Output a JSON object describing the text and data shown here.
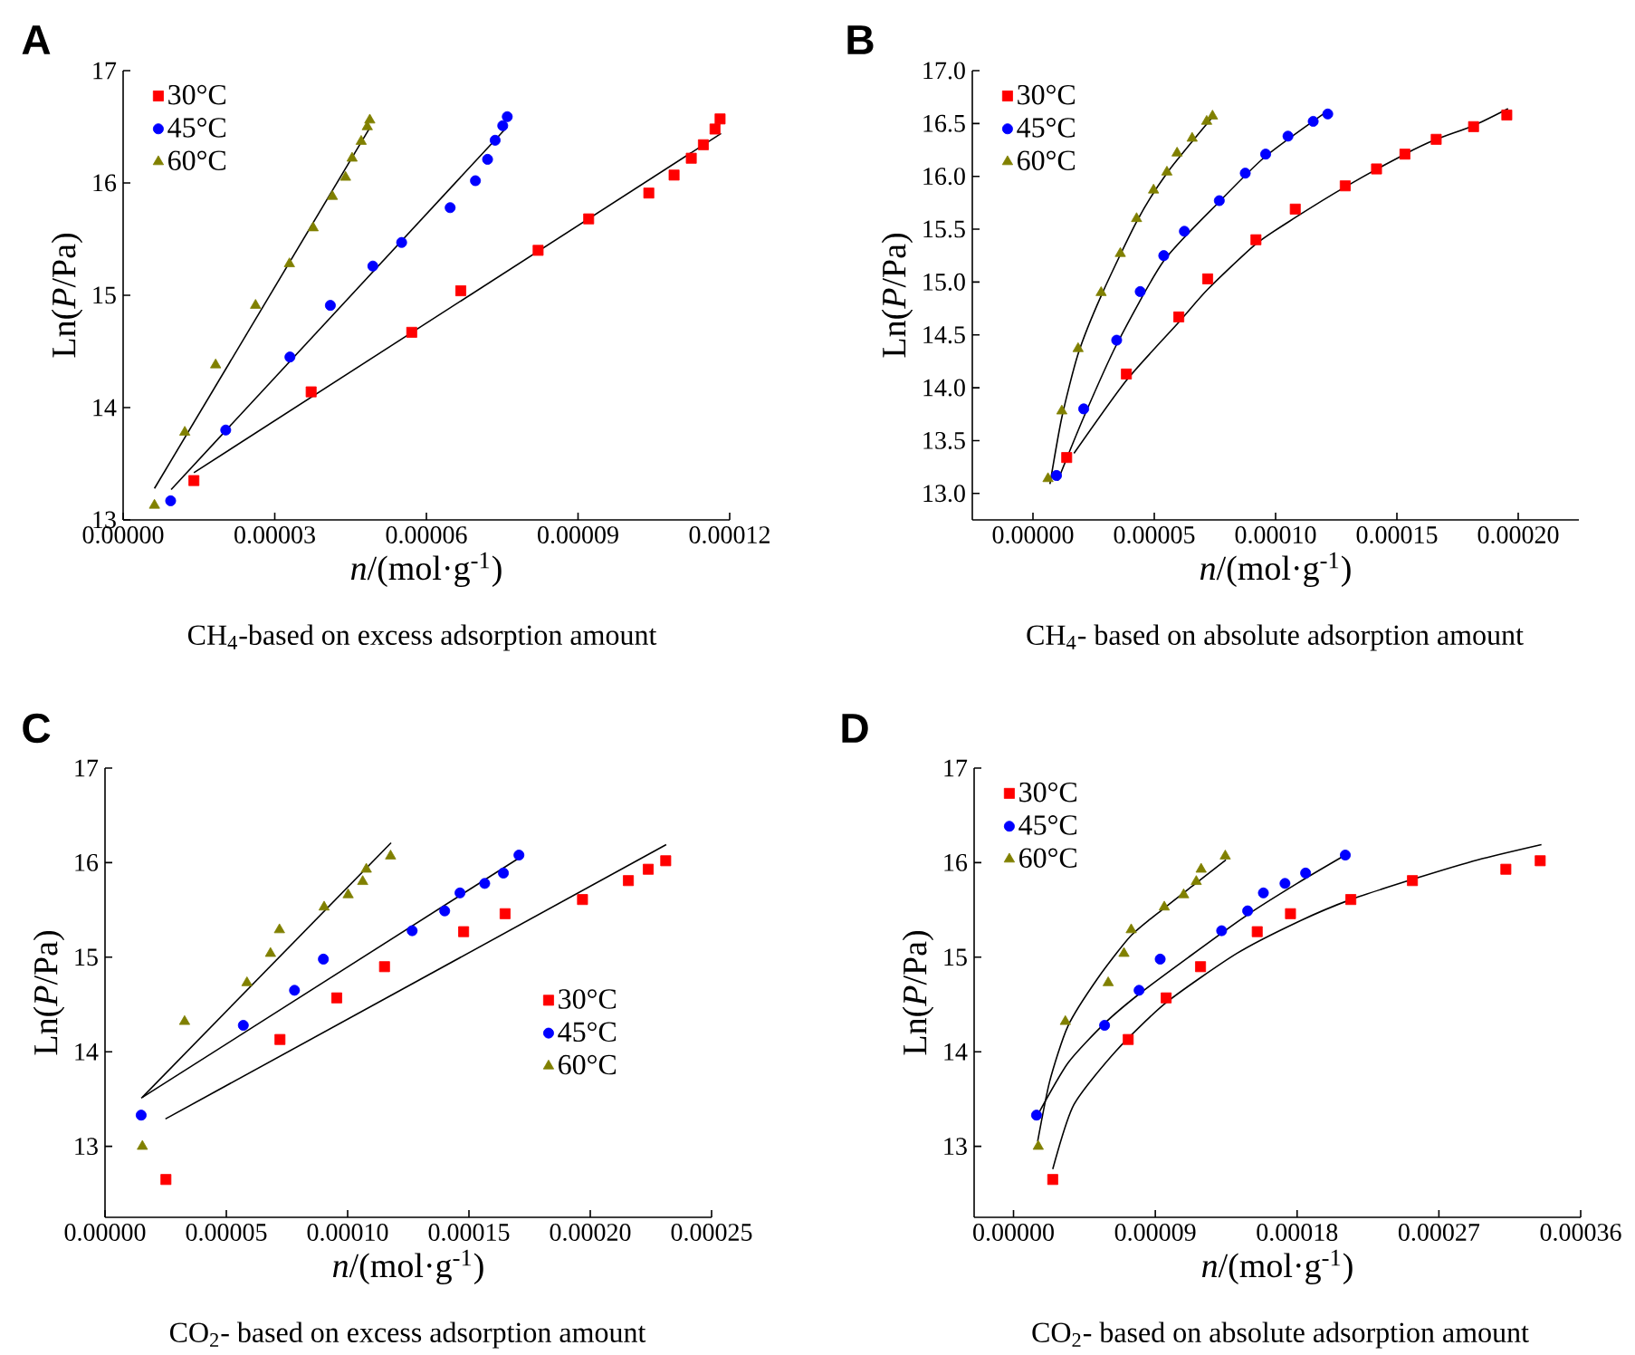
{
  "chart_data": [
    {
      "type": "scatter",
      "title": "A",
      "annotations": [
        "CH$_{4}$-based on excess adsorption amount"
      ],
      "xlabel": "*n*/(mol·g$^{-1}$)",
      "ylabel": "Ln(*P*/Pa)",
      "xlim": [
        0,
        0.00012
      ],
      "ylim": [
        13,
        17
      ],
      "xticks": [
        {
          "value": 0,
          "label": "0.00000"
        },
        {
          "value": 3e-05,
          "label": "0.00003"
        },
        {
          "value": 6e-05,
          "label": "0.00006"
        },
        {
          "value": 9e-05,
          "label": "0.00009"
        },
        {
          "value": 0.00012,
          "label": "0.00012"
        }
      ],
      "yticks": [
        13,
        14,
        15,
        16,
        17
      ],
      "legend": "top left",
      "series": [
        {
          "name": "30°C",
          "color": "#ff0000",
          "marker": "square",
          "x": [
            1.4e-05,
            3.72e-05,
            5.71e-05,
            6.68e-05,
            8.21e-05,
            9.21e-05,
            0.000104,
            0.000109,
            0.0001124,
            0.0001148,
            0.0001171,
            0.0001181
          ],
          "values": [
            13.35,
            14.14,
            14.67,
            15.04,
            15.4,
            15.68,
            15.91,
            16.07,
            16.22,
            16.34,
            16.48,
            16.57
          ]
        },
        {
          "name": "45°C",
          "color": "#0000ff",
          "marker": "circle",
          "x": [
            9.4e-06,
            2.03e-05,
            3.3e-05,
            4.1e-05,
            4.94e-05,
            5.51e-05,
            6.47e-05,
            6.97e-05,
            7.21e-05,
            7.36e-05,
            7.51e-05,
            7.6e-05
          ],
          "values": [
            13.17,
            13.8,
            14.45,
            14.91,
            15.26,
            15.47,
            15.78,
            16.02,
            16.21,
            16.38,
            16.51,
            16.59
          ]
        },
        {
          "name": "60°C",
          "color": "#808000",
          "marker": "triangle",
          "x": [
            6.2e-06,
            1.22e-05,
            1.83e-05,
            2.62e-05,
            3.29e-05,
            3.76e-05,
            4.14e-05,
            4.4e-05,
            4.53e-05,
            4.71e-05,
            4.83e-05,
            4.88e-05
          ],
          "values": [
            13.13,
            13.78,
            14.38,
            14.91,
            15.28,
            15.6,
            15.88,
            16.05,
            16.22,
            16.37,
            16.5,
            16.56
          ]
        },
        {
          "type": "line",
          "color": "#000000",
          "x": [
            1.4e-05,
            0.0001183
          ],
          "values": [
            13.42,
            16.44
          ]
        },
        {
          "type": "line",
          "color": "#000000",
          "x": [
            9.5e-06,
            7.6e-05
          ],
          "values": [
            13.27,
            16.5
          ]
        },
        {
          "type": "line",
          "color": "#000000",
          "x": [
            6.2e-06,
            4.88e-05
          ],
          "values": [
            13.28,
            16.49
          ]
        }
      ]
    },
    {
      "type": "scatter",
      "title": "B",
      "annotations": [
        "CH$_{4}$- based on absolute adsorption amount"
      ],
      "xlabel": "*n*/(mol·g$^{-1}$)",
      "ylabel": "Ln(*P*/Pa)",
      "xlim": [
        -2.5e-05,
        0.000225
      ],
      "ylim": [
        12.75,
        17
      ],
      "xticks": [
        {
          "value": 0,
          "label": "0.00000"
        },
        {
          "value": 5e-05,
          "label": "0.00005"
        },
        {
          "value": 0.0001,
          "label": "0.00010"
        },
        {
          "value": 0.00015,
          "label": "0.00015"
        },
        {
          "value": 0.0002,
          "label": "0.00020"
        }
      ],
      "yticks": [
        {
          "value": 13,
          "label": "13.0"
        },
        {
          "value": 13.5,
          "label": "13.5"
        },
        {
          "value": 14,
          "label": "14.0"
        },
        {
          "value": 14.5,
          "label": "14.5"
        },
        {
          "value": 15,
          "label": "15.0"
        },
        {
          "value": 15.5,
          "label": "15.5"
        },
        {
          "value": 16,
          "label": "16.0"
        },
        {
          "value": 16.5,
          "label": "16.5"
        },
        {
          "value": 17,
          "label": "17.0"
        }
      ],
      "legend": "top left",
      "series": [
        {
          "name": "30°C",
          "color": "#ff0000",
          "marker": "square",
          "x": [
            1.39e-05,
            3.85e-05,
            6.01e-05,
            7.2e-05,
            9.19e-05,
            0.0001081,
            0.0001287,
            0.0001416,
            0.0001533,
            0.0001662,
            0.0001816,
            0.0001953
          ],
          "values": [
            13.34,
            14.13,
            14.67,
            15.03,
            15.4,
            15.69,
            15.91,
            16.07,
            16.21,
            16.35,
            16.47,
            16.58
          ]
        },
        {
          "name": "45°C",
          "color": "#0000ff",
          "marker": "circle",
          "x": [
            9.7e-06,
            2.09e-05,
            3.45e-05,
            4.42e-05,
            5.39e-05,
            6.24e-05,
            7.68e-05,
            8.75e-05,
            9.59e-05,
            0.0001051,
            0.0001155,
            0.0001215
          ],
          "values": [
            13.17,
            13.8,
            14.45,
            14.91,
            15.25,
            15.48,
            15.77,
            16.03,
            16.21,
            16.38,
            16.52,
            16.59
          ]
        },
        {
          "name": "60°C",
          "color": "#808000",
          "marker": "triangle",
          "x": [
            6.2e-06,
            1.19e-05,
            1.86e-05,
            2.81e-05,
            3.6e-05,
            4.27e-05,
            4.97e-05,
            5.52e-05,
            5.94e-05,
            6.56e-05,
            7.16e-05,
            7.4e-05
          ],
          "values": [
            13.14,
            13.78,
            14.37,
            14.9,
            15.27,
            15.6,
            15.87,
            16.04,
            16.22,
            16.36,
            16.52,
            16.57
          ]
        },
        {
          "type": "line",
          "color": "#000000",
          "x": [
            1.69e-05,
            3.85e-05,
            6.01e-05,
            7.2e-05,
            9.19e-05,
            0.0001081,
            0.0001287,
            0.0001533,
            0.0001662,
            0.0001816,
            0.0001958
          ],
          "values": [
            13.38,
            14.07,
            14.62,
            14.93,
            15.36,
            15.61,
            15.9,
            16.21,
            16.35,
            16.48,
            16.64
          ]
        },
        {
          "type": "line",
          "color": "#000000",
          "x": [
            1.02e-05,
            2.09e-05,
            3.45e-05,
            5.39e-05,
            7.68e-05,
            9.59e-05,
            0.0001215
          ],
          "values": [
            13.12,
            13.72,
            14.41,
            15.2,
            15.76,
            16.19,
            16.62
          ]
        },
        {
          "type": "line",
          "color": "#000000",
          "x": [
            7e-06,
            1.19e-05,
            1.86e-05,
            2.81e-05,
            4.27e-05,
            5.52e-05,
            7.4e-05
          ],
          "values": [
            13.09,
            13.72,
            14.32,
            14.87,
            15.57,
            16.03,
            16.56
          ]
        }
      ]
    },
    {
      "type": "scatter",
      "title": "C",
      "annotations": [
        "CO$_{2}$- based on excess adsorption amount"
      ],
      "xlabel": "*n*/(mol·g$^{-1}$)",
      "ylabel": "Ln(*P*/Pa)",
      "xlim": [
        0,
        0.00025
      ],
      "ylim": [
        12.25,
        17
      ],
      "xticks": [
        {
          "value": 0,
          "label": "0.00000"
        },
        {
          "value": 5e-05,
          "label": "0.00005"
        },
        {
          "value": 0.0001,
          "label": "0.00010"
        },
        {
          "value": 0.00015,
          "label": "0.00015"
        },
        {
          "value": 0.0002,
          "label": "0.00020"
        },
        {
          "value": 0.00025,
          "label": "0.00025"
        }
      ],
      "yticks": [
        13,
        14,
        15,
        16,
        17
      ],
      "legend": "right",
      "series": [
        {
          "name": "30°C",
          "color": "#ff0000",
          "marker": "square",
          "x": [
            2.51e-05,
            7.21e-05,
            9.55e-05,
            0.0001152,
            0.0001478,
            0.0001649,
            0.0001968,
            0.0002157,
            0.0002239,
            0.0002311
          ],
          "values": [
            12.65,
            14.13,
            14.57,
            14.9,
            15.27,
            15.46,
            15.61,
            15.81,
            15.93,
            16.02
          ]
        },
        {
          "name": "45°C",
          "color": "#0000ff",
          "marker": "circle",
          "x": [
            1.49e-05,
            5.7e-05,
            7.81e-05,
            9e-05,
            0.0001266,
            0.00014,
            0.0001463,
            0.0001565,
            0.0001642,
            0.0001706
          ],
          "values": [
            13.33,
            14.28,
            14.65,
            14.98,
            15.28,
            15.49,
            15.68,
            15.78,
            15.89,
            16.08
          ]
        },
        {
          "name": "60°C",
          "color": "#808000",
          "marker": "triangle",
          "x": [
            1.54e-05,
            3.28e-05,
            5.85e-05,
            6.82e-05,
            7.19e-05,
            9.03e-05,
            0.0001002,
            0.0001062,
            0.0001077,
            0.0001177
          ],
          "values": [
            13.0,
            14.32,
            14.73,
            15.04,
            15.29,
            15.53,
            15.66,
            15.8,
            15.93,
            16.07
          ]
        },
        {
          "type": "line",
          "color": "#000000",
          "x": [
            2.49e-05,
            0.0002313
          ],
          "values": [
            13.29,
            16.19
          ]
        },
        {
          "type": "line",
          "color": "#000000",
          "x": [
            1.49e-05,
            0.0001701
          ],
          "values": [
            13.51,
            16.04
          ]
        },
        {
          "type": "line",
          "color": "#000000",
          "x": [
            1.54e-05,
            0.0001179
          ],
          "values": [
            13.52,
            16.21
          ]
        }
      ]
    },
    {
      "type": "scatter",
      "title": "D",
      "annotations": [
        "CO$_{2}$- based on absolute adsorption amount"
      ],
      "xlabel": "*n*/(mol·g$^{-1}$)",
      "ylabel": "Ln(*P*/Pa)",
      "xlim": [
        -2.5e-05,
        0.00036
      ],
      "ylim": [
        12.25,
        17
      ],
      "xticks": [
        {
          "value": 0,
          "label": "0.00000"
        },
        {
          "value": 9e-05,
          "label": "0.00009"
        },
        {
          "value": 0.00018,
          "label": "0.00018"
        },
        {
          "value": 0.00027,
          "label": "0.00027"
        },
        {
          "value": 0.00036,
          "label": "0.00036"
        }
      ],
      "yticks": [
        13,
        14,
        15,
        16,
        17
      ],
      "legend": "top left",
      "series": [
        {
          "name": "30°C",
          "color": "#ff0000",
          "marker": "square",
          "x": [
            2.49e-05,
            7.28e-05,
            9.69e-05,
            0.0001187,
            0.0001547,
            0.0001758,
            0.0002141,
            0.0002532,
            0.0003125,
            0.0003343
          ],
          "values": [
            12.65,
            14.13,
            14.57,
            14.9,
            15.27,
            15.46,
            15.61,
            15.81,
            15.93,
            16.02
          ]
        },
        {
          "name": "45°C",
          "color": "#0000ff",
          "marker": "circle",
          "x": [
            1.46e-05,
            5.78e-05,
            7.97e-05,
            9.31e-05,
            0.0001321,
            0.0001486,
            0.0001586,
            0.0001723,
            0.0001854,
            0.0002106
          ],
          "values": [
            13.33,
            14.28,
            14.65,
            14.98,
            15.28,
            15.49,
            15.68,
            15.78,
            15.89,
            16.08
          ]
        },
        {
          "name": "60°C",
          "color": "#808000",
          "marker": "triangle",
          "x": [
            1.57e-05,
            3.29e-05,
            6.01e-05,
            7.01e-05,
            7.47e-05,
            9.57e-05,
            0.000108,
            0.000116,
            0.0001191,
            0.0001344
          ],
          "values": [
            13.0,
            14.32,
            14.73,
            15.04,
            15.29,
            15.53,
            15.66,
            15.8,
            15.93,
            16.07
          ]
        },
        {
          "type": "line",
          "color": "#000000",
          "x": [
            2.49e-05,
            3.83e-05,
            6.51e-05,
            9.69e-05,
            0.0001417,
            0.00018,
            0.0002141,
            0.0002566,
            0.0002949,
            0.0003351
          ],
          "values": [
            12.76,
            13.44,
            14.01,
            14.52,
            15.04,
            15.37,
            15.61,
            15.84,
            16.03,
            16.19
          ]
        },
        {
          "type": "line",
          "color": "#000000",
          "x": [
            1.46e-05,
            3.45e-05,
            5.78e-05,
            8.04e-05,
            0.0001111,
            0.0001486,
            0.00018,
            0.0002106
          ],
          "values": [
            13.31,
            13.88,
            14.3,
            14.62,
            15.0,
            15.45,
            15.78,
            16.08
          ]
        },
        {
          "type": "line",
          "color": "#000000",
          "x": [
            1.53e-05,
            2.3e-05,
            3.45e-05,
            5.36e-05,
            7.47e-05,
            9.57e-05,
            0.0001149,
            0.0001348
          ],
          "values": [
            13.05,
            13.69,
            14.27,
            14.78,
            15.23,
            15.52,
            15.77,
            16.03
          ]
        }
      ]
    }
  ]
}
